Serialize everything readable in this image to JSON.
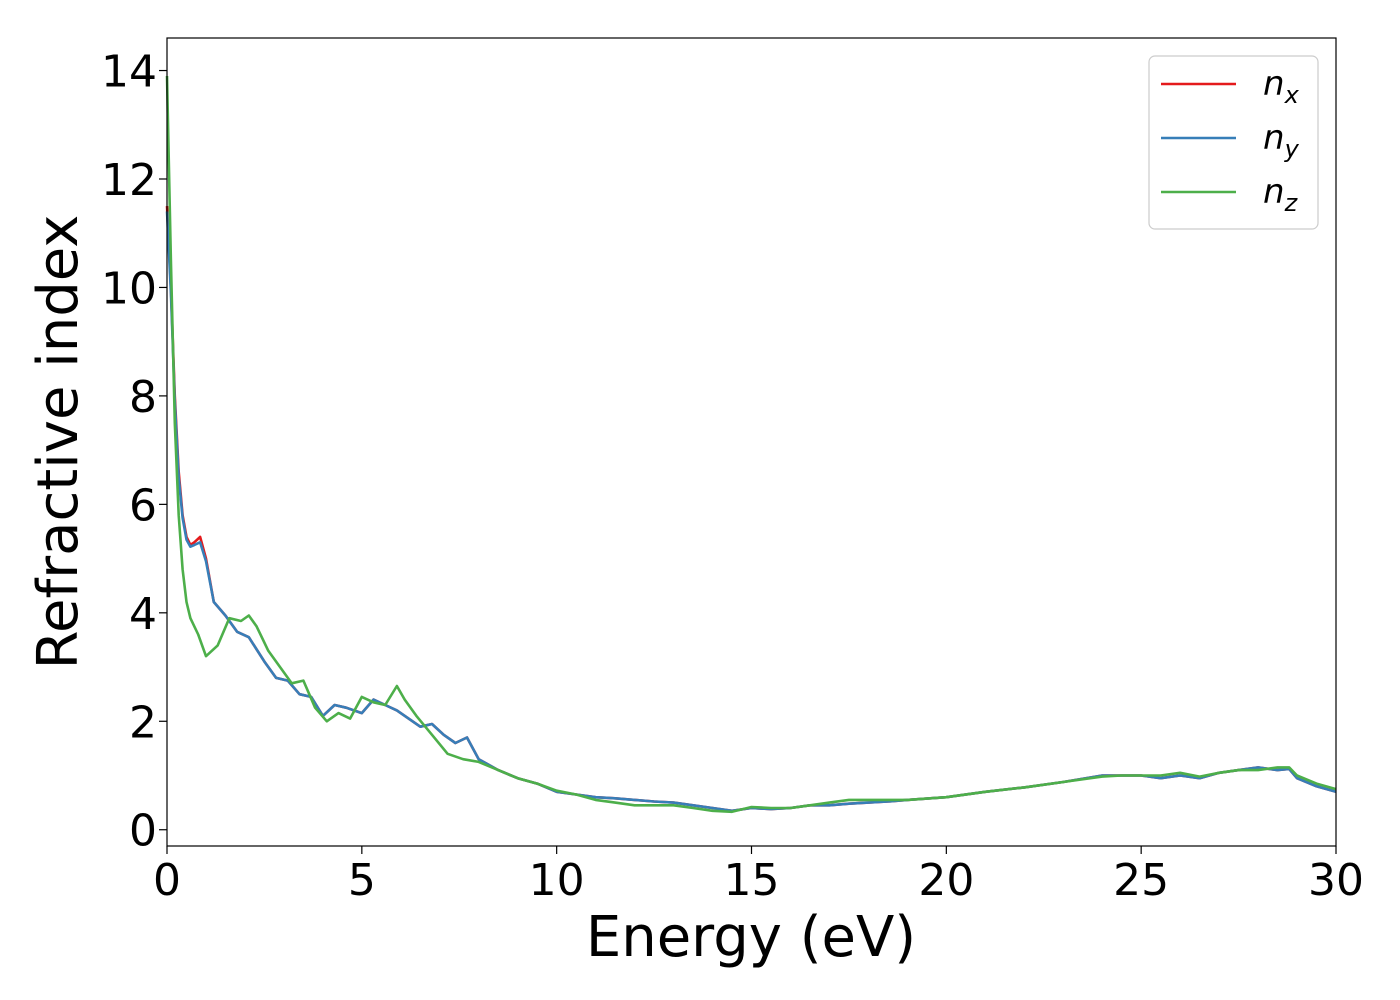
{
  "chart_data": {
    "type": "line",
    "title": "",
    "xlabel": "Energy (eV)",
    "ylabel": "Refractive index",
    "xlim": [
      0,
      30
    ],
    "ylim": [
      -0.3,
      14.6
    ],
    "xticks": [
      "0",
      "5",
      "10",
      "15",
      "20",
      "25",
      "30"
    ],
    "yticks": [
      "0",
      "2",
      "4",
      "6",
      "8",
      "10",
      "12",
      "14"
    ],
    "grid": false,
    "legend_position": "top-right",
    "series": [
      {
        "name": "n_x",
        "label_base": "n",
        "label_sub": "x",
        "color": "#e41a1c",
        "x": [
          0,
          0.1,
          0.2,
          0.3,
          0.4,
          0.5,
          0.6,
          0.7,
          0.85,
          1.0,
          1.2,
          1.5,
          1.8,
          2.1,
          2.5,
          2.8,
          3.1,
          3.4,
          3.7,
          4.0,
          4.3,
          4.6,
          5.0,
          5.3,
          5.6,
          5.9,
          6.2,
          6.5,
          6.8,
          7.1,
          7.4,
          7.7,
          8.0,
          8.5,
          9.0,
          9.5,
          10.0,
          10.5,
          11.0,
          11.5,
          12.0,
          12.5,
          13.0,
          13.5,
          14.0,
          14.5,
          15.0,
          15.5,
          16.0,
          16.5,
          17.0,
          17.5,
          18.0,
          18.5,
          19.0,
          20.0,
          21.0,
          22.0,
          23.0,
          24.0,
          24.5,
          25.0,
          25.5,
          26.0,
          26.5,
          27.0,
          27.5,
          28.0,
          28.5,
          28.8,
          29.0,
          29.5,
          30.0
        ],
        "y": [
          11.5,
          10.0,
          8.0,
          6.6,
          5.8,
          5.4,
          5.25,
          5.3,
          5.4,
          5.0,
          4.2,
          3.95,
          3.65,
          3.55,
          3.1,
          2.8,
          2.75,
          2.5,
          2.45,
          2.1,
          2.3,
          2.25,
          2.15,
          2.4,
          2.3,
          2.2,
          2.05,
          1.9,
          1.95,
          1.75,
          1.6,
          1.7,
          1.3,
          1.1,
          0.95,
          0.85,
          0.7,
          0.65,
          0.6,
          0.58,
          0.55,
          0.52,
          0.5,
          0.45,
          0.4,
          0.35,
          0.4,
          0.38,
          0.4,
          0.45,
          0.45,
          0.48,
          0.5,
          0.52,
          0.55,
          0.6,
          0.7,
          0.78,
          0.88,
          1.0,
          1.0,
          1.0,
          0.95,
          1.0,
          0.95,
          1.05,
          1.1,
          1.15,
          1.1,
          1.12,
          0.95,
          0.8,
          0.7
        ]
      },
      {
        "name": "n_y",
        "label_base": "n",
        "label_sub": "y",
        "color": "#377eb8",
        "x": [
          0,
          0.1,
          0.2,
          0.3,
          0.4,
          0.5,
          0.6,
          0.7,
          0.85,
          1.0,
          1.2,
          1.5,
          1.8,
          2.1,
          2.5,
          2.8,
          3.1,
          3.4,
          3.7,
          4.0,
          4.3,
          4.6,
          5.0,
          5.3,
          5.6,
          5.9,
          6.2,
          6.5,
          6.8,
          7.1,
          7.4,
          7.7,
          8.0,
          8.5,
          9.0,
          9.5,
          10.0,
          10.5,
          11.0,
          11.5,
          12.0,
          12.5,
          13.0,
          13.5,
          14.0,
          14.5,
          15.0,
          15.5,
          16.0,
          16.5,
          17.0,
          17.5,
          18.0,
          18.5,
          19.0,
          20.0,
          21.0,
          22.0,
          23.0,
          24.0,
          24.5,
          25.0,
          25.5,
          26.0,
          26.5,
          27.0,
          27.5,
          28.0,
          28.5,
          28.8,
          29.0,
          29.5,
          30.0
        ],
        "y": [
          11.4,
          9.9,
          7.9,
          6.5,
          5.75,
          5.35,
          5.22,
          5.25,
          5.3,
          4.95,
          4.2,
          3.95,
          3.65,
          3.55,
          3.1,
          2.8,
          2.75,
          2.5,
          2.45,
          2.1,
          2.3,
          2.25,
          2.15,
          2.4,
          2.3,
          2.2,
          2.05,
          1.9,
          1.95,
          1.75,
          1.6,
          1.7,
          1.3,
          1.1,
          0.95,
          0.85,
          0.7,
          0.65,
          0.6,
          0.58,
          0.55,
          0.52,
          0.5,
          0.45,
          0.4,
          0.35,
          0.4,
          0.38,
          0.4,
          0.45,
          0.45,
          0.48,
          0.5,
          0.52,
          0.55,
          0.6,
          0.7,
          0.78,
          0.88,
          1.0,
          1.0,
          1.0,
          0.95,
          1.0,
          0.95,
          1.05,
          1.1,
          1.15,
          1.1,
          1.12,
          0.95,
          0.8,
          0.7
        ]
      },
      {
        "name": "n_z",
        "label_base": "n",
        "label_sub": "z",
        "color": "#4daf4a",
        "x": [
          0,
          0.1,
          0.2,
          0.3,
          0.4,
          0.5,
          0.6,
          0.8,
          1.0,
          1.3,
          1.6,
          1.9,
          2.1,
          2.3,
          2.6,
          2.9,
          3.2,
          3.5,
          3.8,
          4.1,
          4.4,
          4.7,
          5.0,
          5.3,
          5.6,
          5.9,
          6.1,
          6.4,
          6.8,
          7.2,
          7.6,
          8.0,
          8.5,
          9.0,
          9.5,
          10.0,
          10.5,
          11.0,
          11.5,
          12.0,
          12.5,
          13.0,
          13.5,
          14.0,
          14.5,
          15.0,
          15.5,
          16.0,
          16.5,
          17.0,
          17.5,
          18.0,
          18.5,
          19.0,
          20.0,
          21.0,
          22.0,
          23.0,
          24.0,
          24.5,
          25.0,
          25.5,
          26.0,
          26.5,
          27.0,
          27.5,
          28.0,
          28.5,
          28.8,
          29.0,
          29.5,
          30.0
        ],
        "y": [
          13.9,
          10.5,
          7.5,
          5.8,
          4.8,
          4.2,
          3.9,
          3.6,
          3.2,
          3.4,
          3.9,
          3.85,
          3.95,
          3.75,
          3.3,
          3.0,
          2.7,
          2.75,
          2.25,
          2.0,
          2.15,
          2.05,
          2.45,
          2.35,
          2.3,
          2.65,
          2.4,
          2.1,
          1.75,
          1.4,
          1.3,
          1.25,
          1.1,
          0.95,
          0.85,
          0.72,
          0.65,
          0.55,
          0.5,
          0.45,
          0.45,
          0.45,
          0.4,
          0.35,
          0.33,
          0.42,
          0.4,
          0.4,
          0.45,
          0.5,
          0.55,
          0.55,
          0.55,
          0.55,
          0.6,
          0.7,
          0.78,
          0.88,
          0.98,
          1.0,
          1.0,
          1.0,
          1.05,
          0.98,
          1.05,
          1.1,
          1.1,
          1.15,
          1.15,
          1.0,
          0.85,
          0.75
        ]
      }
    ]
  }
}
